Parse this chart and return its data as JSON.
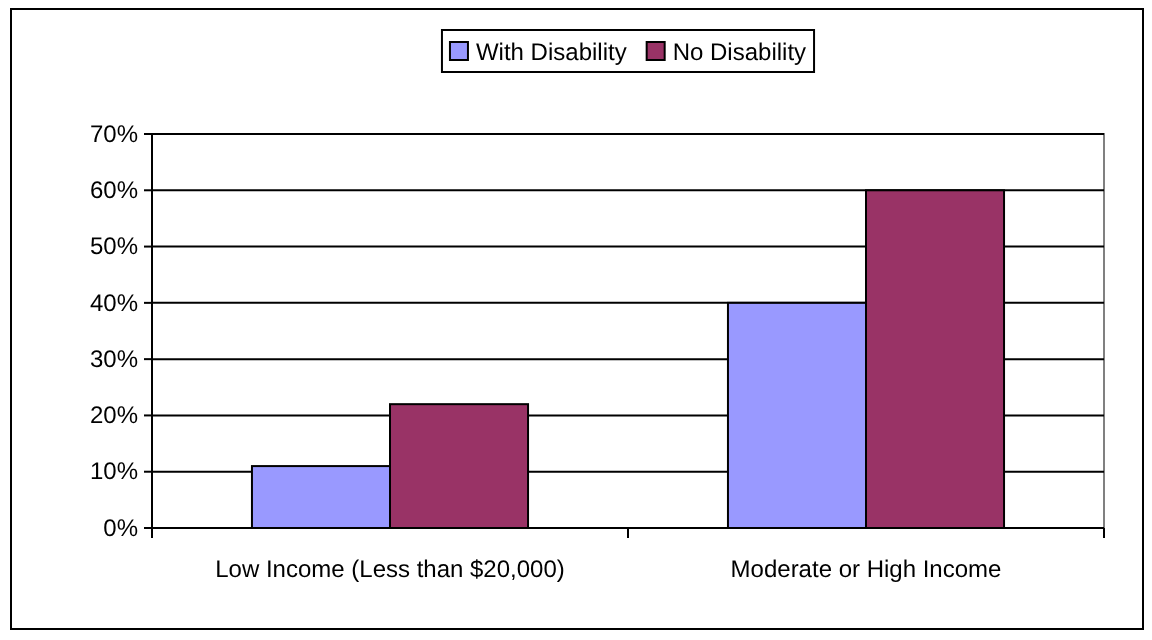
{
  "chart_data": {
    "type": "bar",
    "categories": [
      "Low Income (Less than $20,000)",
      "Moderate or High Income"
    ],
    "series": [
      {
        "name": "With Disability",
        "color": "#9999ff",
        "values": [
          11,
          40
        ]
      },
      {
        "name": "No Disability",
        "color": "#993366",
        "values": [
          22,
          60
        ]
      }
    ],
    "ylim": [
      0,
      70
    ],
    "yticks": [
      {
        "value": 0,
        "label": "0%"
      },
      {
        "value": 10,
        "label": "10%"
      },
      {
        "value": 20,
        "label": "20%"
      },
      {
        "value": 30,
        "label": "30%"
      },
      {
        "value": 40,
        "label": "40%"
      },
      {
        "value": 50,
        "label": "50%"
      },
      {
        "value": 60,
        "label": "60%"
      },
      {
        "value": 70,
        "label": "70%"
      }
    ],
    "grid": "y",
    "legend": "top"
  }
}
